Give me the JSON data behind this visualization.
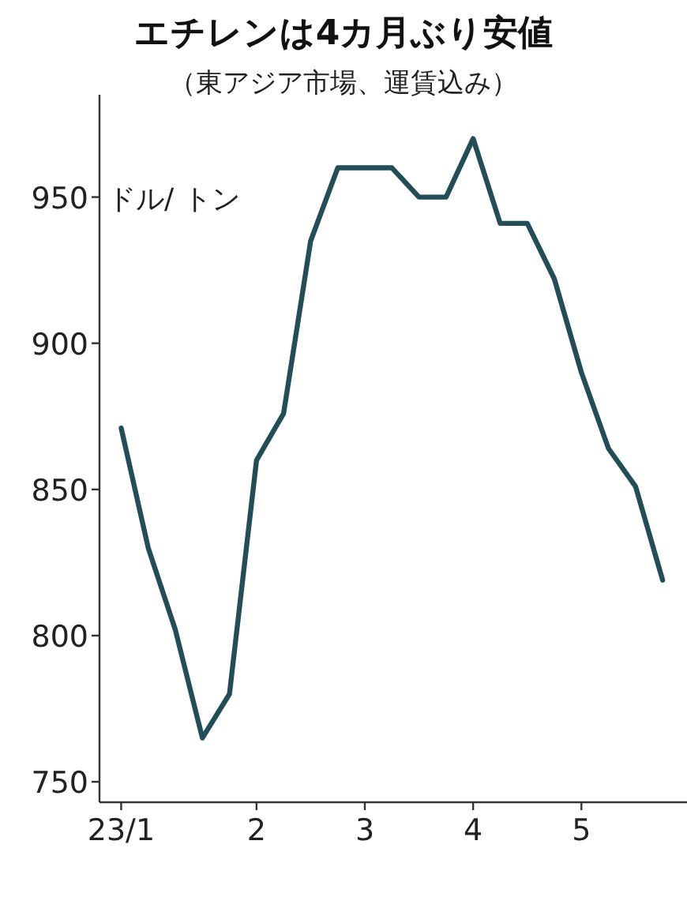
{
  "chart_data": {
    "type": "line",
    "title": "エチレンは4カ月ぶり安値",
    "subtitle": "（東アジア市場、運賃込み）",
    "ylabel": "ドル/ トン",
    "categories": [
      "23/1",
      null,
      null,
      null,
      null,
      "2",
      null,
      null,
      null,
      "3",
      null,
      null,
      null,
      "4",
      null,
      null,
      null,
      "5",
      null,
      null,
      null
    ],
    "series": [
      {
        "color": "#234e57",
        "values": [
          871,
          830,
          802,
          765,
          780,
          860,
          876,
          935,
          960,
          960,
          960,
          950,
          950,
          970,
          941,
          941,
          922,
          890,
          864,
          851,
          819
        ]
      }
    ],
    "ylim": [
      743,
      985
    ],
    "yticks": [
      750,
      800,
      850,
      900,
      950
    ],
    "line_style": "solid"
  }
}
